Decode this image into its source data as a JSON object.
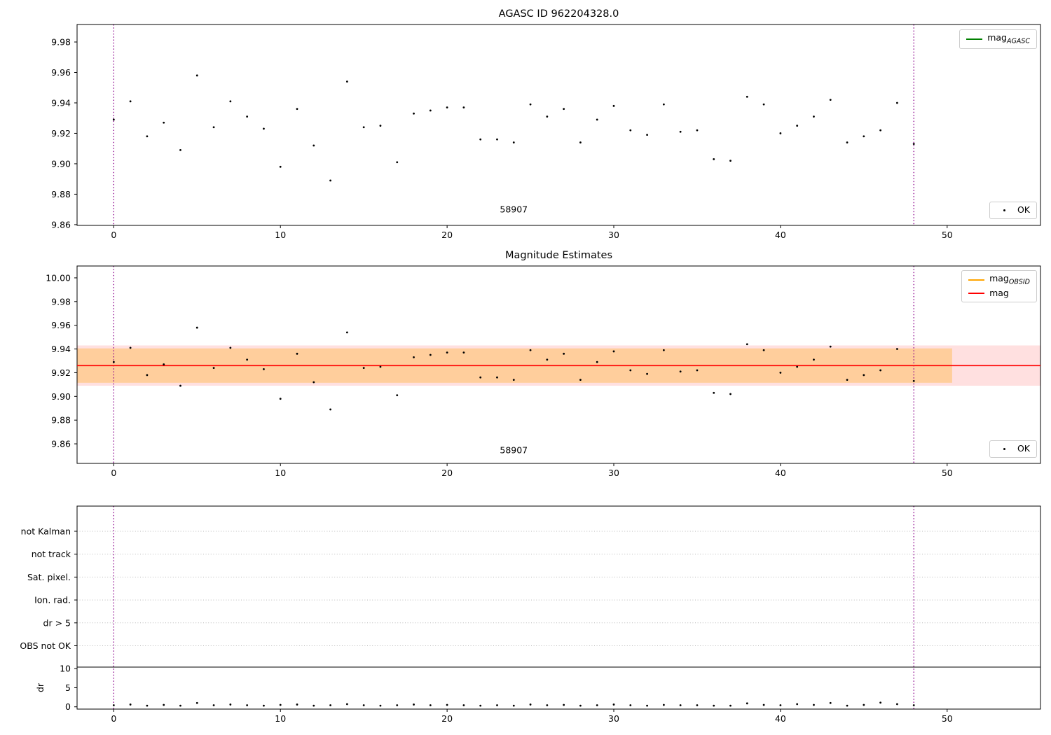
{
  "colors": {
    "vline": "#8b008b",
    "point": "#000000",
    "agasc_line": "#008000",
    "obsid_line": "#ffa500",
    "mag_line": "#ff0000",
    "obsid_band": "rgba(255,165,0,0.3)",
    "mag_band": "rgba(255,0,0,0.12)",
    "grid": "#b9b9b9",
    "spine": "#000000"
  },
  "chart_data": [
    {
      "type": "scatter",
      "title": "AGASC ID 962204328.0",
      "xlim": [
        -2.2,
        55.6
      ],
      "ylim": [
        9.8595,
        9.9915
      ],
      "xticks": [
        0,
        10,
        20,
        30,
        40,
        50
      ],
      "yticks": [
        9.86,
        9.88,
        9.9,
        9.92,
        9.94,
        9.96,
        9.98
      ],
      "vlines": [
        0,
        48
      ],
      "annotation": {
        "text": "58907",
        "x": 24,
        "y": 9.868
      },
      "legend": {
        "main": "mag",
        "sub": "AGASC"
      },
      "ok_label": "OK",
      "x": [
        0,
        1,
        2,
        3,
        4,
        5,
        6,
        7,
        8,
        9,
        10,
        11,
        12,
        13,
        14,
        15,
        16,
        17,
        18,
        19,
        20,
        21,
        22,
        23,
        24,
        25,
        26,
        27,
        28,
        29,
        30,
        31,
        32,
        33,
        34,
        35,
        36,
        37,
        38,
        39,
        40,
        41,
        42,
        43,
        44,
        45,
        46,
        47,
        48
      ],
      "y": [
        9.929,
        9.941,
        9.918,
        9.927,
        9.909,
        9.958,
        9.924,
        9.941,
        9.931,
        9.923,
        9.898,
        9.936,
        9.912,
        9.889,
        9.954,
        9.924,
        9.925,
        9.901,
        9.933,
        9.935,
        9.937,
        9.937,
        9.916,
        9.916,
        9.914,
        9.939,
        9.931,
        9.936,
        9.914,
        9.929,
        9.938,
        9.922,
        9.919,
        9.939,
        9.921,
        9.922,
        9.903,
        9.902,
        9.944,
        9.939,
        9.92,
        9.925,
        9.931,
        9.942,
        9.914,
        9.918,
        9.922,
        9.94,
        9.913
      ]
    },
    {
      "type": "scatter",
      "title": "Magnitude Estimates",
      "xlim": [
        -2.2,
        55.6
      ],
      "ylim": [
        9.8435,
        10.01
      ],
      "xticks": [
        0,
        10,
        20,
        30,
        40,
        50
      ],
      "yticks": [
        9.86,
        9.88,
        9.9,
        9.92,
        9.94,
        9.96,
        9.98,
        10.0
      ],
      "vlines": [
        0,
        48
      ],
      "annotation": {
        "text": "58907",
        "x": 24,
        "y": 9.852
      },
      "mag_mean": 9.926,
      "mag_band": [
        9.909,
        9.943
      ],
      "obsid_band": {
        "x0": -2.2,
        "x1": 50.3,
        "y0": 9.9115,
        "y1": 9.9405
      },
      "legend": {
        "obsid_main": "mag",
        "obsid_sub": "OBSID",
        "mag_label": "mag"
      },
      "ok_label": "OK",
      "x": [
        0,
        1,
        2,
        3,
        4,
        5,
        6,
        7,
        8,
        9,
        10,
        11,
        12,
        13,
        14,
        15,
        16,
        17,
        18,
        19,
        20,
        21,
        22,
        23,
        24,
        25,
        26,
        27,
        28,
        29,
        30,
        31,
        32,
        33,
        34,
        35,
        36,
        37,
        38,
        39,
        40,
        41,
        42,
        43,
        44,
        45,
        46,
        47,
        48
      ],
      "y": [
        9.929,
        9.941,
        9.918,
        9.927,
        9.909,
        9.958,
        9.924,
        9.941,
        9.931,
        9.923,
        9.898,
        9.936,
        9.912,
        9.889,
        9.954,
        9.924,
        9.925,
        9.901,
        9.933,
        9.935,
        9.937,
        9.937,
        9.916,
        9.916,
        9.914,
        9.939,
        9.931,
        9.936,
        9.914,
        9.929,
        9.938,
        9.922,
        9.919,
        9.939,
        9.921,
        9.922,
        9.903,
        9.902,
        9.944,
        9.939,
        9.92,
        9.925,
        9.931,
        9.942,
        9.914,
        9.918,
        9.922,
        9.94,
        9.913
      ]
    },
    {
      "type": "scatter",
      "title": "",
      "xlim": [
        -2.2,
        55.6
      ],
      "ylim": [
        -0.6,
        52.6
      ],
      "xticks": [
        0,
        10,
        20,
        30,
        40,
        50
      ],
      "vlines": [
        0,
        48
      ],
      "categories": [
        "not Kalman",
        "not track",
        "Sat. pixel.",
        "Ion. rad.",
        "dr > 5",
        "OBS not OK"
      ],
      "cat_y": [
        46,
        40,
        34,
        28,
        22,
        16
      ],
      "dr_ticks": [
        0,
        5,
        10
      ],
      "dr_limit": 10.4,
      "ylabel": "dr",
      "x": [
        0,
        1,
        2,
        3,
        4,
        5,
        6,
        7,
        8,
        9,
        10,
        11,
        12,
        13,
        14,
        15,
        16,
        17,
        18,
        19,
        20,
        21,
        22,
        23,
        24,
        25,
        26,
        27,
        28,
        29,
        30,
        31,
        32,
        33,
        34,
        35,
        36,
        37,
        38,
        39,
        40,
        41,
        42,
        43,
        44,
        45,
        46,
        47,
        48
      ],
      "dr": [
        0.4,
        0.6,
        0.3,
        0.5,
        0.3,
        1.0,
        0.4,
        0.6,
        0.4,
        0.3,
        0.5,
        0.6,
        0.3,
        0.4,
        0.7,
        0.4,
        0.3,
        0.4,
        0.6,
        0.4,
        0.5,
        0.4,
        0.3,
        0.4,
        0.3,
        0.6,
        0.4,
        0.5,
        0.3,
        0.4,
        0.6,
        0.4,
        0.3,
        0.5,
        0.4,
        0.4,
        0.3,
        0.3,
        0.9,
        0.5,
        0.4,
        0.7,
        0.5,
        1.0,
        0.3,
        0.5,
        1.1,
        0.7,
        0.4
      ]
    }
  ]
}
